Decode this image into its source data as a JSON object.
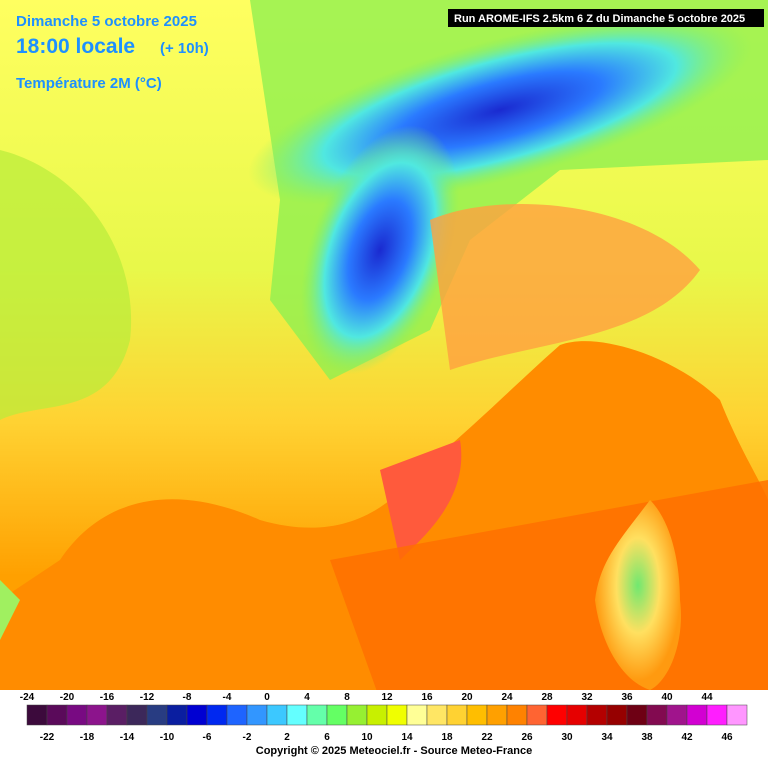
{
  "header": {
    "date": "Dimanche 5 octobre 2025",
    "time": "18:00 locale",
    "offset": "(+ 10h)",
    "field": "Température 2M (°C)",
    "run": "Run AROME-IFS 2.5km 6 Z du Dimanche 5 octobre 2025"
  },
  "legend": {
    "scale": [
      {
        "value": -24,
        "color": "#3c0a3c"
      },
      {
        "value": -22,
        "color": "#5a0a5a"
      },
      {
        "value": -20,
        "color": "#780a82"
      },
      {
        "value": -18,
        "color": "#8c148c"
      },
      {
        "value": -16,
        "color": "#5a1e64"
      },
      {
        "value": -14,
        "color": "#3c285a"
      },
      {
        "value": -12,
        "color": "#283c82"
      },
      {
        "value": -10,
        "color": "#0a1ea0"
      },
      {
        "value": -8,
        "color": "#0000d2"
      },
      {
        "value": -6,
        "color": "#0028f0"
      },
      {
        "value": -4,
        "color": "#1e64ff"
      },
      {
        "value": -2,
        "color": "#3296ff"
      },
      {
        "value": 0,
        "color": "#3cc8ff"
      },
      {
        "value": 2,
        "color": "#64ffff"
      },
      {
        "value": 4,
        "color": "#64ffaa"
      },
      {
        "value": 6,
        "color": "#64ff64"
      },
      {
        "value": 8,
        "color": "#96f032"
      },
      {
        "value": 10,
        "color": "#c8f000"
      },
      {
        "value": 12,
        "color": "#f0ff00"
      },
      {
        "value": 14,
        "color": "#ffff96"
      },
      {
        "value": 16,
        "color": "#ffe664"
      },
      {
        "value": 18,
        "color": "#ffd232"
      },
      {
        "value": 20,
        "color": "#ffbe00"
      },
      {
        "value": 22,
        "color": "#ffa000"
      },
      {
        "value": 24,
        "color": "#ff8200"
      },
      {
        "value": 26,
        "color": "#ff6432"
      },
      {
        "value": 28,
        "color": "#ff0000"
      },
      {
        "value": 30,
        "color": "#e60000"
      },
      {
        "value": 32,
        "color": "#b40000"
      },
      {
        "value": 34,
        "color": "#960000"
      },
      {
        "value": 36,
        "color": "#6e0014"
      },
      {
        "value": 38,
        "color": "#820a50"
      },
      {
        "value": 40,
        "color": "#a0148c"
      },
      {
        "value": 42,
        "color": "#d200d2"
      },
      {
        "value": 44,
        "color": "#ff1eff"
      },
      {
        "value": 46,
        "color": "#ff96ff"
      }
    ]
  },
  "footer": {
    "copyright": "Copyright © 2025 Meteociel.fr - Source Meteo-France"
  }
}
